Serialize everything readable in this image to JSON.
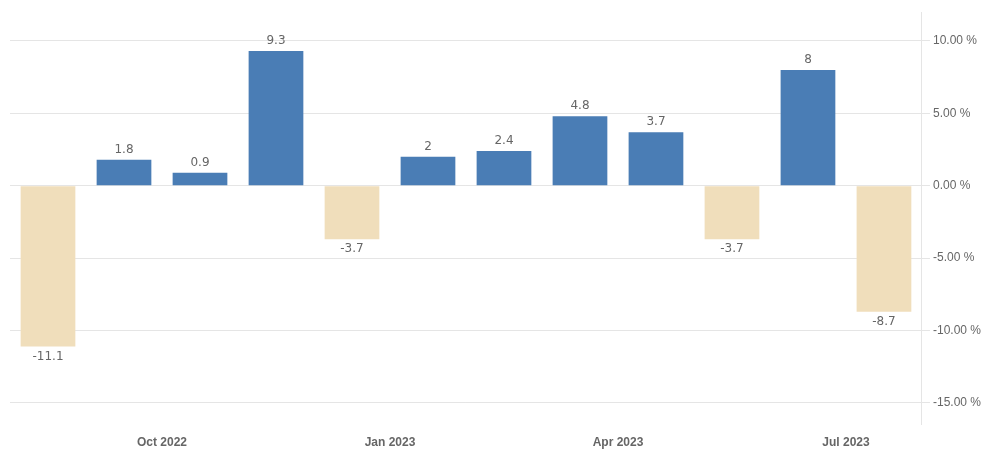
{
  "chart_data": {
    "type": "bar",
    "categories": [
      null,
      "Oct 2022",
      null,
      null,
      "Jan 2023",
      null,
      null,
      "Apr 2023",
      null,
      null,
      "Jul 2023",
      null
    ],
    "values": [
      -11.1,
      1.8,
      0.9,
      9.3,
      -3.7,
      2.0,
      2.4,
      4.8,
      3.7,
      -3.7,
      8.0,
      -8.7
    ],
    "colors": [
      "#f0debb",
      "#4a7db5",
      "#4a7db5",
      "#4a7db5",
      "#f0debb",
      "#4a7db5",
      "#4a7db5",
      "#4a7db5",
      "#4a7db5",
      "#f0debb",
      "#4a7db5",
      "#f0debb"
    ],
    "ylim": [
      -16.5,
      12.0
    ],
    "yticks": [
      {
        "value": -15,
        "label": "-15.00 %"
      },
      {
        "value": -10,
        "label": "-10.00 %"
      },
      {
        "value": -5,
        "label": "-5.00 %"
      },
      {
        "value": 0,
        "label": "0.00 %"
      },
      {
        "value": 5,
        "label": "5.00 %"
      },
      {
        "value": 10,
        "label": "10.00 %"
      }
    ],
    "grid": true,
    "data_labels": true
  }
}
